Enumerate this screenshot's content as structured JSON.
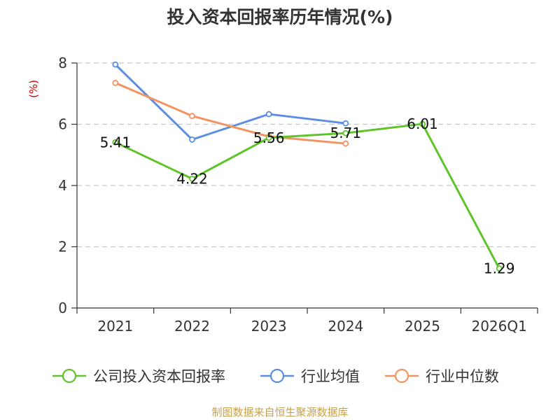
{
  "chart_data": {
    "type": "line",
    "title": "投入资本回报率历年情况(%)",
    "ylabel": "(%)",
    "xlabel": "",
    "ylim": [
      0,
      8
    ],
    "yticks": [
      0,
      2,
      4,
      6,
      8
    ],
    "grid": true,
    "legend_position": "bottom",
    "categories": [
      "2021",
      "2022",
      "2023",
      "2024",
      "2025",
      "2026Q1"
    ],
    "series": [
      {
        "name": "公司投入资本回报率",
        "color": "#5ec42a",
        "values": [
          5.41,
          4.22,
          5.56,
          5.71,
          6.01,
          1.29
        ],
        "labeled": true
      },
      {
        "name": "行业均值",
        "color": "#5b8ee0",
        "values": [
          7.95,
          5.5,
          6.33,
          6.03,
          null,
          null
        ],
        "labeled": false
      },
      {
        "name": "行业中位数",
        "color": "#f39460",
        "values": [
          7.35,
          6.27,
          5.6,
          5.37,
          null,
          null
        ],
        "labeled": false
      }
    ],
    "data_labels": [
      "5.41",
      "4.22",
      "5.56",
      "5.71",
      "6.01",
      "1.29"
    ]
  },
  "source": "制图数据来自恒生聚源数据库"
}
